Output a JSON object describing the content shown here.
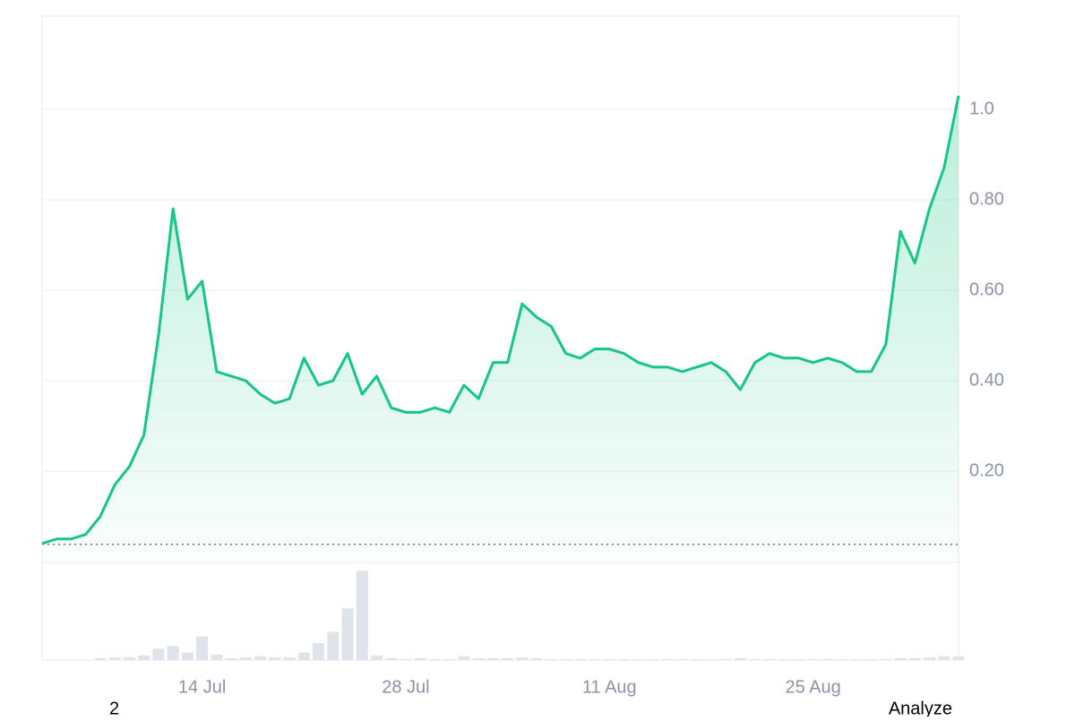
{
  "chart_data": {
    "type": "line",
    "x": [
      "3 Jul",
      "4 Jul",
      "5 Jul",
      "6 Jul",
      "7 Jul",
      "8 Jul",
      "9 Jul",
      "10 Jul",
      "11 Jul",
      "12 Jul",
      "13 Jul",
      "14 Jul",
      "15 Jul",
      "16 Jul",
      "17 Jul",
      "18 Jul",
      "19 Jul",
      "20 Jul",
      "21 Jul",
      "22 Jul",
      "23 Jul",
      "24 Jul",
      "25 Jul",
      "26 Jul",
      "27 Jul",
      "28 Jul",
      "29 Jul",
      "30 Jul",
      "31 Jul",
      "1 Aug",
      "2 Aug",
      "3 Aug",
      "4 Aug",
      "5 Aug",
      "6 Aug",
      "7 Aug",
      "8 Aug",
      "9 Aug",
      "10 Aug",
      "11 Aug",
      "12 Aug",
      "13 Aug",
      "14 Aug",
      "15 Aug",
      "16 Aug",
      "17 Aug",
      "18 Aug",
      "19 Aug",
      "20 Aug",
      "21 Aug",
      "22 Aug",
      "23 Aug",
      "24 Aug",
      "25 Aug",
      "26 Aug",
      "27 Aug",
      "28 Aug",
      "29 Aug",
      "30 Aug",
      "31 Aug",
      "1 Sep",
      "2 Sep",
      "3 Sep",
      "4 Sep"
    ],
    "series": [
      {
        "color": "#16c784",
        "values": [
          0.04,
          0.05,
          0.05,
          0.06,
          0.1,
          0.17,
          0.21,
          0.28,
          0.5,
          0.78,
          0.58,
          0.62,
          0.42,
          0.41,
          0.4,
          0.37,
          0.35,
          0.36,
          0.45,
          0.39,
          0.4,
          0.46,
          0.37,
          0.41,
          0.34,
          0.33,
          0.33,
          0.34,
          0.33,
          0.39,
          0.36,
          0.44,
          0.44,
          0.57,
          0.54,
          0.52,
          0.46,
          0.45,
          0.47,
          0.47,
          0.46,
          0.44,
          0.43,
          0.43,
          0.42,
          0.43,
          0.44,
          0.42,
          0.38,
          0.44,
          0.46,
          0.45,
          0.45,
          0.44,
          0.45,
          0.44,
          0.42,
          0.42,
          0.48,
          0.73,
          0.66,
          0.78,
          0.87,
          1.03
        ]
      }
    ],
    "volume": {
      "color": "#dfe3ea",
      "ylim": [
        0,
        1
      ],
      "values": [
        0,
        0,
        0,
        0,
        0.02,
        0.03,
        0.03,
        0.05,
        0.12,
        0.15,
        0.08,
        0.25,
        0.06,
        0.02,
        0.03,
        0.04,
        0.03,
        0.03,
        0.08,
        0.18,
        0.3,
        0.55,
        0.95,
        0.05,
        0.02,
        0.01,
        0.02,
        0.01,
        0.01,
        0.04,
        0.02,
        0.02,
        0.02,
        0.03,
        0.02,
        0.01,
        0.01,
        0.01,
        0.01,
        0.01,
        0.01,
        0.01,
        0.01,
        0.01,
        0.01,
        0.01,
        0.01,
        0.01,
        0.02,
        0.01,
        0.01,
        0.01,
        0.01,
        0.01,
        0.01,
        0.01,
        0.01,
        0.01,
        0.01,
        0.02,
        0.02,
        0.03,
        0.04,
        0.04
      ]
    },
    "reference_line": 0.038,
    "ylim": [
      0,
      1.206
    ],
    "yticks": [
      {
        "value": 0.2,
        "label": "0.20"
      },
      {
        "value": 0.4,
        "label": "0.40"
      },
      {
        "value": 0.6,
        "label": "0.60"
      },
      {
        "value": 0.8,
        "label": "0.80"
      },
      {
        "value": 1,
        "label": "1.0"
      }
    ],
    "xticks": [
      "14 Jul",
      "28 Jul",
      "11 Aug",
      "25 Aug"
    ],
    "grid": true
  },
  "footer": {
    "left": "2",
    "right": "Analyze"
  }
}
